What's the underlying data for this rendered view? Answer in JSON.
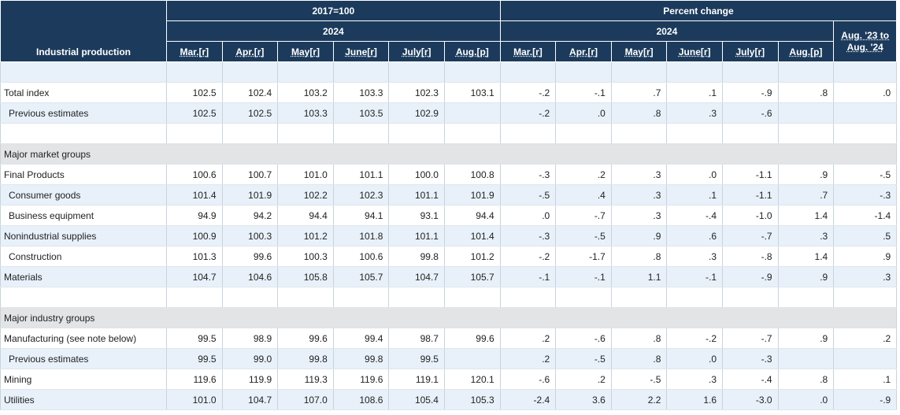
{
  "header": {
    "stub_label": "Industrial production",
    "group_index": "2017=100",
    "group_percent": "Percent change",
    "year_index": "2024",
    "year_percent": "2024",
    "yoy_line1": "Aug. '23 to",
    "yoy_line2": "Aug. '24",
    "index_months": [
      "Mar.[r]",
      "Apr.[r]",
      "May[r]",
      "June[r]",
      "July[r]",
      "Aug.[p]"
    ],
    "percent_months": [
      "Mar.[r]",
      "Apr.[r]",
      "May[r]",
      "June[r]",
      "July[r]",
      "Aug.[p]"
    ]
  },
  "rows": [
    {
      "type": "spacer",
      "style": "blue",
      "label": "",
      "cells": [
        "",
        "",
        "",
        "",
        "",
        "",
        "",
        "",
        "",
        "",
        "",
        "",
        ""
      ]
    },
    {
      "type": "data",
      "style": "white",
      "indent": false,
      "label": "Total index",
      "cells": [
        "102.5",
        "102.4",
        "103.2",
        "103.3",
        "102.3",
        "103.1",
        "-.2",
        "-.1",
        ".7",
        ".1",
        "-.9",
        ".8",
        ".0"
      ]
    },
    {
      "type": "data",
      "style": "blue",
      "indent": true,
      "label": "Previous estimates",
      "cells": [
        "102.5",
        "102.5",
        "103.3",
        "103.5",
        "102.9",
        "",
        "-.2",
        ".0",
        ".8",
        ".3",
        "-.6",
        "",
        ""
      ]
    },
    {
      "type": "spacer",
      "style": "white",
      "label": "",
      "cells": [
        "",
        "",
        "",
        "",
        "",
        "",
        "",
        "",
        "",
        "",
        "",
        "",
        ""
      ]
    },
    {
      "type": "section",
      "style": "section",
      "label": "Major market groups"
    },
    {
      "type": "data",
      "style": "white",
      "indent": false,
      "label": "Final Products",
      "cells": [
        "100.6",
        "100.7",
        "101.0",
        "101.1",
        "100.0",
        "100.8",
        "-.3",
        ".2",
        ".3",
        ".0",
        "-1.1",
        ".9",
        "-.5"
      ]
    },
    {
      "type": "data",
      "style": "blue",
      "indent": true,
      "label": "Consumer goods",
      "cells": [
        "101.4",
        "101.9",
        "102.2",
        "102.3",
        "101.1",
        "101.9",
        "-.5",
        ".4",
        ".3",
        ".1",
        "-1.1",
        ".7",
        "-.3"
      ]
    },
    {
      "type": "data",
      "style": "white",
      "indent": true,
      "label": "Business equipment",
      "cells": [
        "94.9",
        "94.2",
        "94.4",
        "94.1",
        "93.1",
        "94.4",
        ".0",
        "-.7",
        ".3",
        "-.4",
        "-1.0",
        "1.4",
        "-1.4"
      ]
    },
    {
      "type": "data",
      "style": "blue",
      "indent": false,
      "label": "Nonindustrial supplies",
      "cells": [
        "100.9",
        "100.3",
        "101.2",
        "101.8",
        "101.1",
        "101.4",
        "-.3",
        "-.5",
        ".9",
        ".6",
        "-.7",
        ".3",
        ".5"
      ]
    },
    {
      "type": "data",
      "style": "white",
      "indent": true,
      "label": "Construction",
      "cells": [
        "101.3",
        "99.6",
        "100.3",
        "100.6",
        "99.8",
        "101.2",
        "-.2",
        "-1.7",
        ".8",
        ".3",
        "-.8",
        "1.4",
        ".9"
      ]
    },
    {
      "type": "data",
      "style": "blue",
      "indent": false,
      "label": "Materials",
      "cells": [
        "104.7",
        "104.6",
        "105.8",
        "105.7",
        "104.7",
        "105.7",
        "-.1",
        "-.1",
        "1.1",
        "-.1",
        "-.9",
        ".9",
        ".3"
      ]
    },
    {
      "type": "spacer",
      "style": "white",
      "label": "",
      "cells": [
        "",
        "",
        "",
        "",
        "",
        "",
        "",
        "",
        "",
        "",
        "",
        "",
        ""
      ]
    },
    {
      "type": "section",
      "style": "section",
      "label": "Major industry groups"
    },
    {
      "type": "data",
      "style": "white",
      "indent": false,
      "label": "Manufacturing (see note below)",
      "cells": [
        "99.5",
        "98.9",
        "99.6",
        "99.4",
        "98.7",
        "99.6",
        ".2",
        "-.6",
        ".8",
        "-.2",
        "-.7",
        ".9",
        ".2"
      ]
    },
    {
      "type": "data",
      "style": "blue",
      "indent": true,
      "label": "Previous estimates",
      "cells": [
        "99.5",
        "99.0",
        "99.8",
        "99.8",
        "99.5",
        "",
        ".2",
        "-.5",
        ".8",
        ".0",
        "-.3",
        "",
        ""
      ]
    },
    {
      "type": "data",
      "style": "white",
      "indent": false,
      "label": "Mining",
      "cells": [
        "119.6",
        "119.9",
        "119.3",
        "119.6",
        "119.1",
        "120.1",
        "-.6",
        ".2",
        "-.5",
        ".3",
        "-.4",
        ".8",
        ".1"
      ]
    },
    {
      "type": "data",
      "style": "blue",
      "indent": false,
      "label": "Utilities",
      "cells": [
        "101.0",
        "104.7",
        "107.0",
        "108.6",
        "105.4",
        "105.3",
        "-2.4",
        "3.6",
        "2.2",
        "1.6",
        "-3.0",
        ".0",
        "-.9"
      ]
    }
  ]
}
